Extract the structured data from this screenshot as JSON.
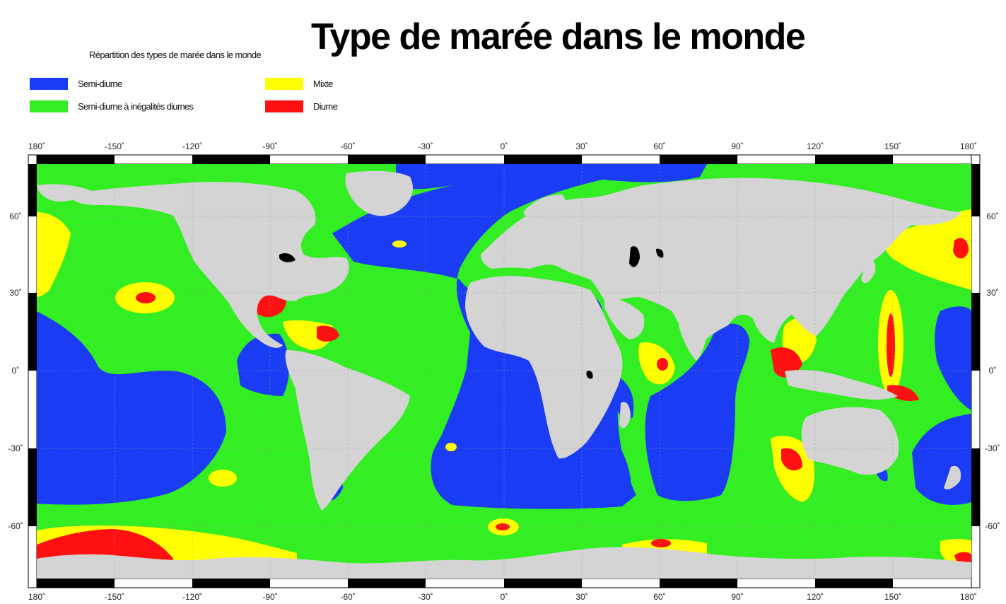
{
  "title": "Type de marée dans le monde",
  "subtitle": "Répartition des types de marée dans le monde",
  "legend": [
    {
      "label": "Semi-diurne",
      "color": "#1a3cf5",
      "icon": "legend-swatch-semi-diurne"
    },
    {
      "label": "Semi-diurne à inégalités diurnes",
      "color": "#33ee22",
      "icon": "legend-swatch-semi-diurne-inegalites"
    },
    {
      "label": "Mixte",
      "color": "#ffff00",
      "icon": "legend-swatch-mixte"
    },
    {
      "label": "Diurne",
      "color": "#ff1111",
      "icon": "legend-swatch-diurne"
    }
  ],
  "map": {
    "land_color": "#d4d4d4",
    "lon_ticks": [
      "180˚",
      "-150˚",
      "-120˚",
      "-90˚",
      "-60˚",
      "-30˚",
      "0˚",
      "30˚",
      "60˚",
      "90˚",
      "120˚",
      "150˚",
      "180˚"
    ],
    "lat_ticks": [
      "60˚",
      "30˚",
      "0˚",
      "-30˚",
      "-60˚"
    ]
  }
}
